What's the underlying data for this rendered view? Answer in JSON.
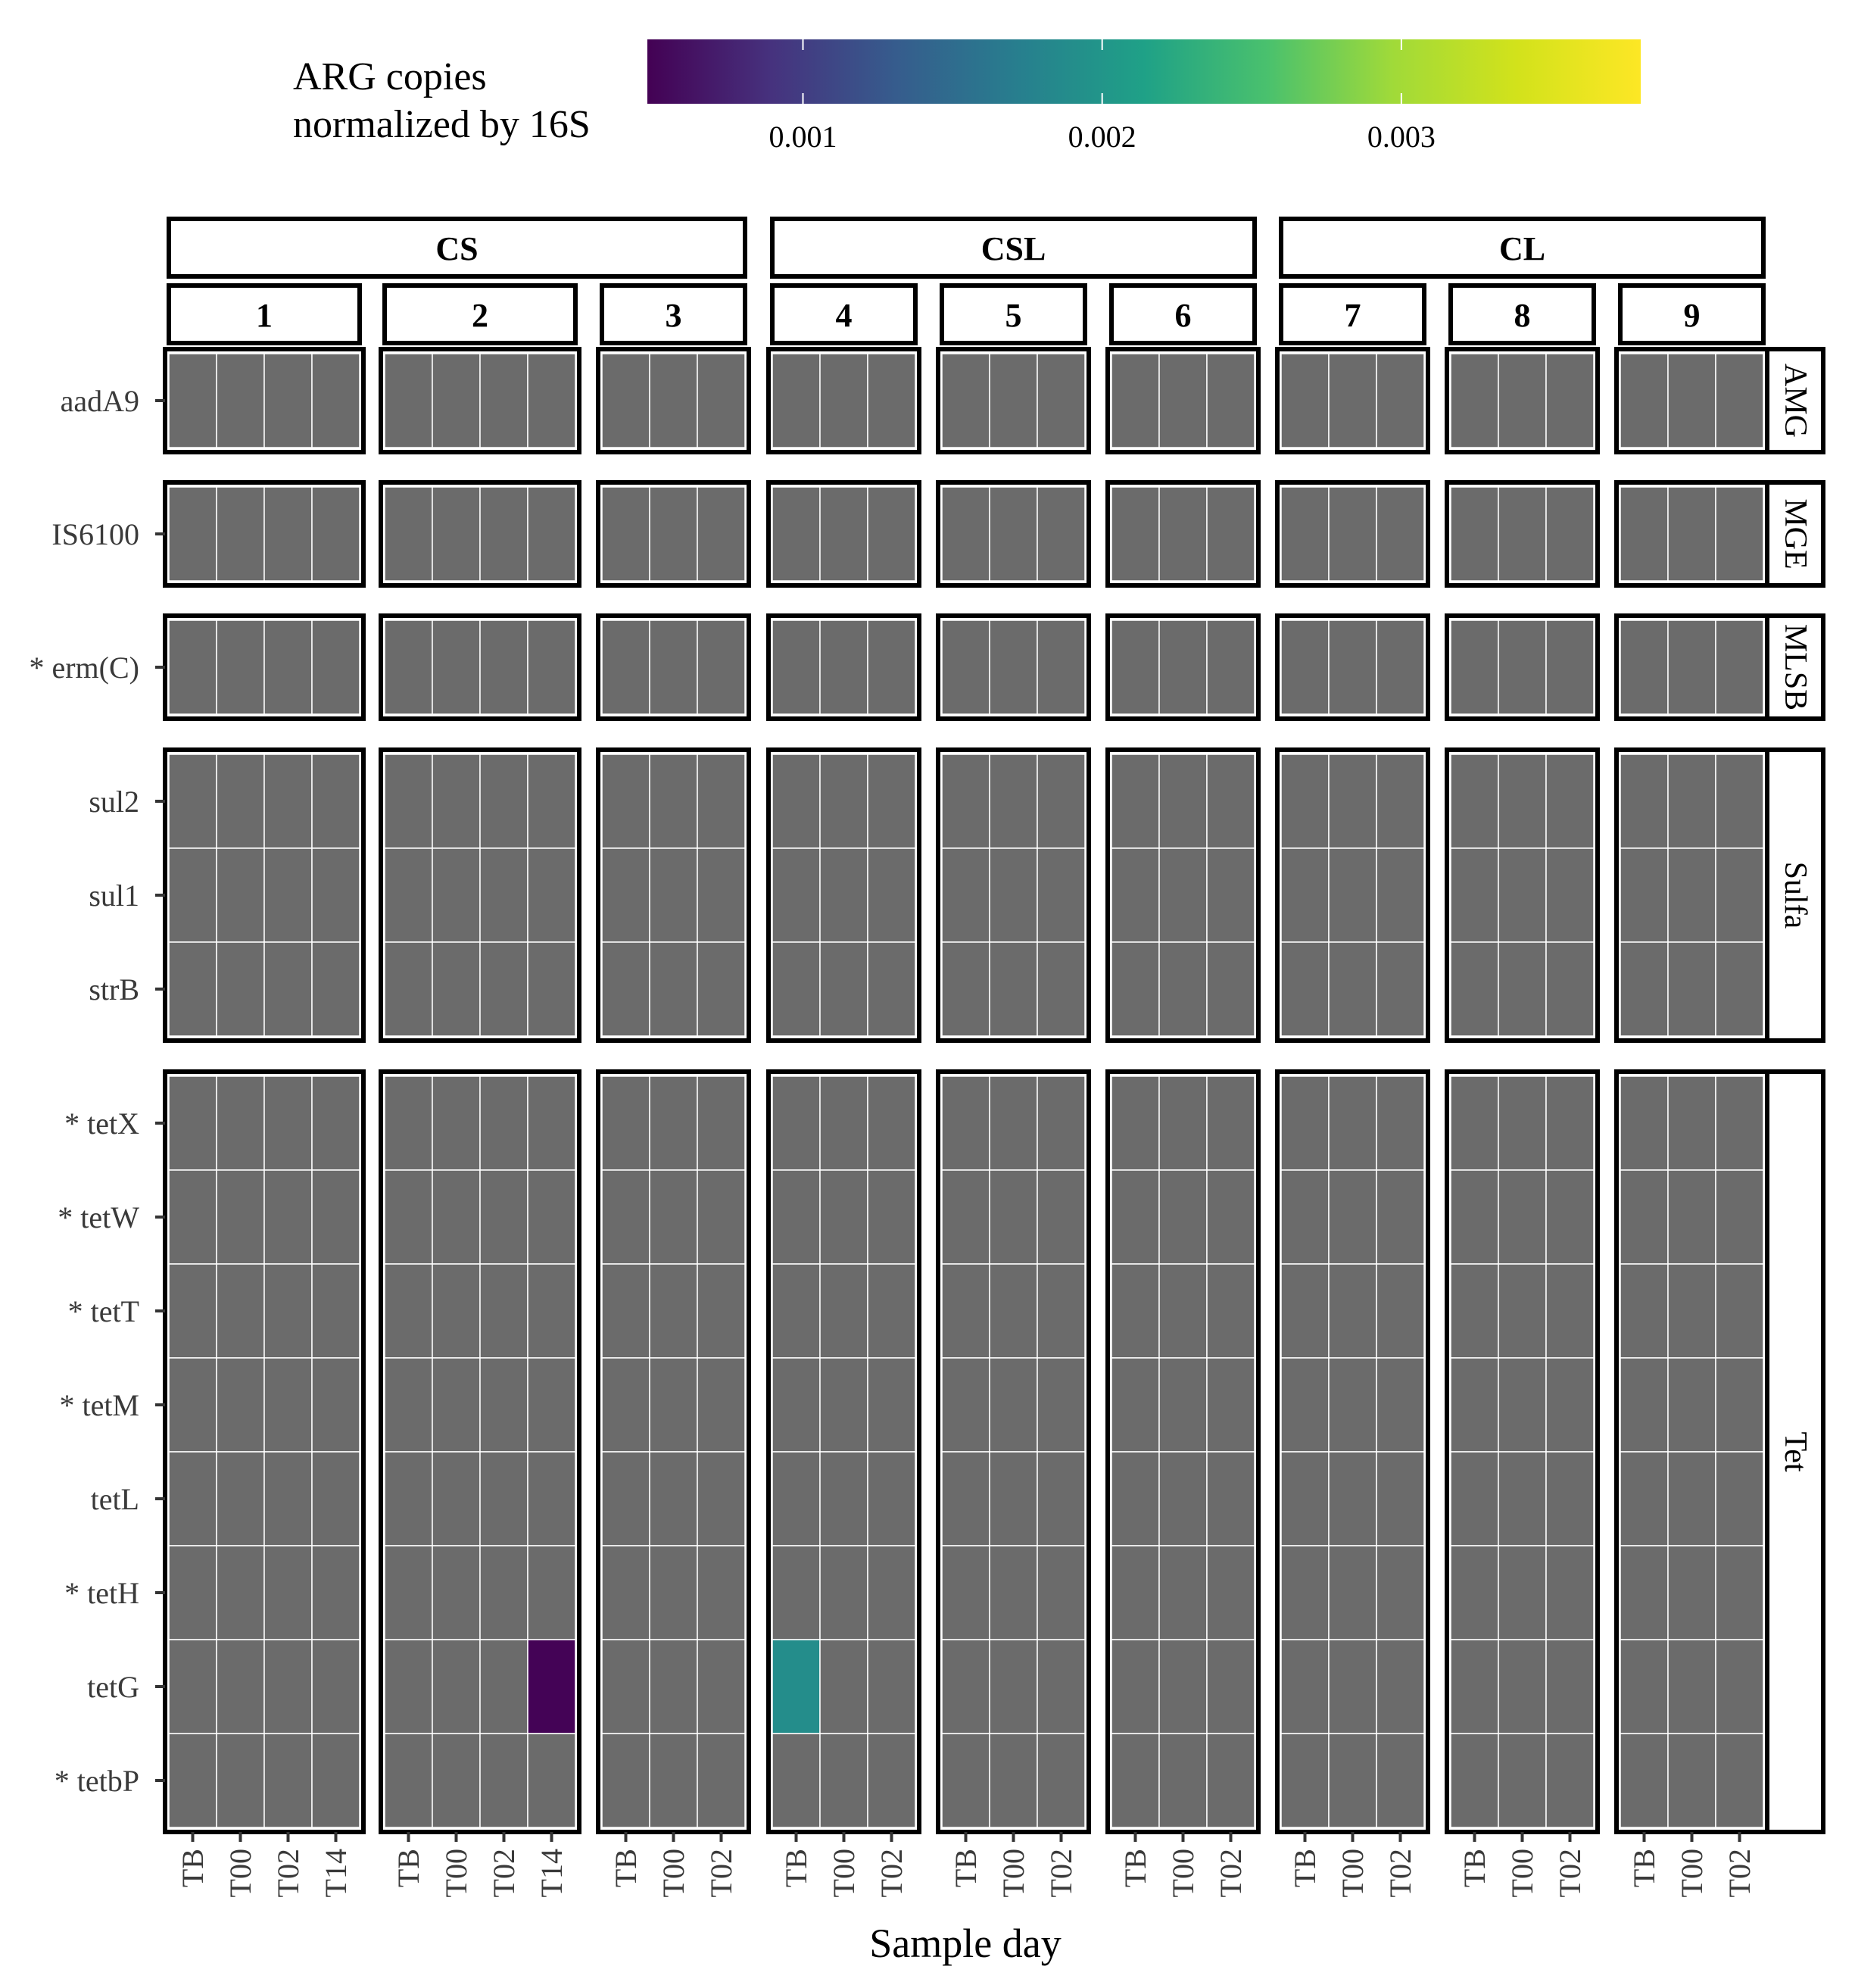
{
  "chart_data": {
    "type": "heatmap",
    "xlabel": "Sample day",
    "legend": {
      "title_lines": [
        "ARG copies",
        "normalized by 16S"
      ],
      "min": 0.00048,
      "max": 0.0038,
      "ticks": [
        0.001,
        0.002,
        0.003
      ],
      "tick_labels": [
        "0.001",
        "0.002",
        "0.003"
      ],
      "colormap": "viridis",
      "placement": "top"
    },
    "na_color": "#6b6b6b",
    "groups": [
      {
        "label": "CS",
        "panels": [
          "1",
          "2",
          "3"
        ]
      },
      {
        "label": "CSL",
        "panels": [
          "4",
          "5",
          "6"
        ]
      },
      {
        "label": "CL",
        "panels": [
          "7",
          "8",
          "9"
        ]
      }
    ],
    "panels": [
      {
        "label": "1",
        "days": [
          "TB",
          "T00",
          "T02",
          "T14"
        ]
      },
      {
        "label": "2",
        "days": [
          "TB",
          "T00",
          "T02",
          "T14"
        ]
      },
      {
        "label": "3",
        "days": [
          "TB",
          "T00",
          "T02"
        ]
      },
      {
        "label": "4",
        "days": [
          "TB",
          "T00",
          "T02"
        ]
      },
      {
        "label": "5",
        "days": [
          "TB",
          "T00",
          "T02"
        ]
      },
      {
        "label": "6",
        "days": [
          "TB",
          "T00",
          "T02"
        ]
      },
      {
        "label": "7",
        "days": [
          "TB",
          "T00",
          "T02"
        ]
      },
      {
        "label": "8",
        "days": [
          "TB",
          "T00",
          "T02"
        ]
      },
      {
        "label": "9",
        "days": [
          "TB",
          "T00",
          "T02"
        ]
      }
    ],
    "row_groups": [
      {
        "label": "AMG",
        "genes": [
          "aadA9"
        ]
      },
      {
        "label": "MGE",
        "genes": [
          "IS6100"
        ]
      },
      {
        "label": "MLSB",
        "genes": [
          "* erm(C)"
        ]
      },
      {
        "label": "Sulfa",
        "genes": [
          "sul2",
          "sul1",
          "strB"
        ]
      },
      {
        "label": "Tet",
        "genes": [
          "* tetX",
          "* tetW",
          "* tetT",
          "* tetM",
          "tetL",
          "* tetH",
          "tetG",
          "* tetbP"
        ]
      }
    ],
    "values": [
      {
        "panel": "2",
        "day": "T14",
        "gene": "tetG",
        "value": 0.0005
      },
      {
        "panel": "4",
        "day": "TB",
        "gene": "tetG",
        "value": 0.0019
      }
    ]
  }
}
